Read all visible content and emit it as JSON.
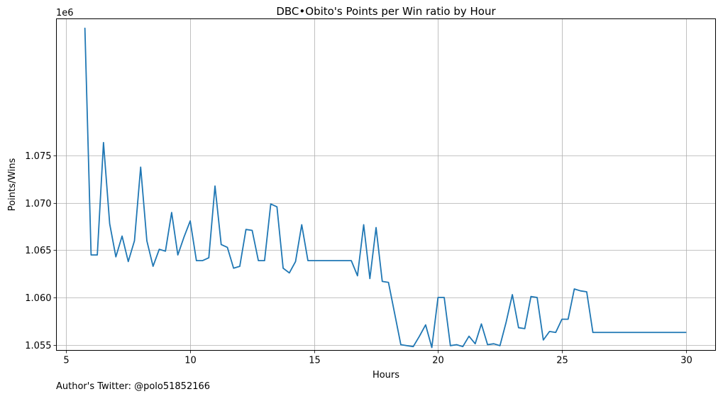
{
  "chart_data": {
    "type": "line",
    "title": "DBC•Obito's Points per Win ratio by Hour",
    "xlabel": "Hours",
    "ylabel": "Points/Wins",
    "y_offset_label": "1e6",
    "xlim": [
      4.6,
      31.2
    ],
    "ylim": [
      1.0544,
      1.0895
    ],
    "x_ticks": [
      5,
      10,
      15,
      20,
      25,
      30
    ],
    "x_tick_labels": [
      "5",
      "10",
      "15",
      "20",
      "25",
      "30"
    ],
    "y_ticks": [
      1.055,
      1.06,
      1.065,
      1.07,
      1.075
    ],
    "y_tick_labels": [
      "1.055",
      "1.060",
      "1.065",
      "1.070",
      "1.075"
    ],
    "grid": true,
    "line_color": "#1f77b4",
    "series": [
      {
        "x": [
          5.75,
          6.0,
          6.25,
          6.5,
          6.75,
          7.0,
          7.25,
          7.5,
          7.75,
          8.0,
          8.25,
          8.5,
          8.75,
          9.0,
          9.25,
          9.5,
          9.75,
          10.0,
          10.25,
          10.5,
          10.75,
          11.0,
          11.25,
          11.5,
          11.75,
          12.0,
          12.25,
          12.5,
          12.75,
          13.0,
          13.25,
          13.5,
          13.75,
          14.0,
          14.25,
          14.5,
          14.75,
          15.0,
          15.25,
          15.5,
          15.75,
          16.0,
          16.25,
          16.5,
          16.75,
          17.0,
          17.25,
          17.5,
          17.75,
          18.0,
          18.25,
          18.5,
          18.75,
          19.0,
          19.25,
          19.5,
          19.75,
          20.0,
          20.25,
          20.5,
          20.75,
          21.0,
          21.25,
          21.5,
          21.75,
          22.0,
          22.25,
          22.5,
          22.75,
          23.0,
          23.25,
          23.5,
          23.75,
          24.0,
          24.25,
          24.5,
          24.75,
          25.0,
          25.25,
          25.5,
          25.75,
          26.0,
          26.25,
          26.5,
          26.75,
          27.0,
          27.25,
          27.5,
          27.75,
          28.0,
          28.25,
          28.5,
          28.75,
          29.0,
          29.25,
          29.5,
          29.75,
          30.0
        ],
        "y": [
          1.0885,
          1.0645,
          1.0645,
          1.0764,
          1.0678,
          1.0643,
          1.0665,
          1.0638,
          1.066,
          1.0738,
          1.066,
          1.0633,
          1.0651,
          1.0649,
          1.069,
          1.0645,
          1.0664,
          1.0681,
          1.0639,
          1.0639,
          1.0642,
          1.0718,
          1.0656,
          1.0653,
          1.0631,
          1.0633,
          1.0672,
          1.0671,
          1.0639,
          1.0639,
          1.0699,
          1.0696,
          1.0631,
          1.0626,
          1.0638,
          1.0677,
          1.0639,
          1.0639,
          1.0639,
          1.0639,
          1.0639,
          1.0639,
          1.0639,
          1.0639,
          1.0623,
          1.0677,
          1.062,
          1.0674,
          1.0617,
          1.0616,
          1.0583,
          1.055,
          1.0549,
          1.0548,
          1.0559,
          1.0571,
          1.0547,
          1.06,
          1.06,
          1.0549,
          1.055,
          1.0548,
          1.0559,
          1.0551,
          1.0572,
          1.055,
          1.0551,
          1.0549,
          1.0574,
          1.0603,
          1.0568,
          1.0567,
          1.0601,
          1.06,
          1.0555,
          1.0564,
          1.0563,
          1.0577,
          1.0577,
          1.0609,
          1.0607,
          1.0606,
          1.0563,
          1.0563,
          1.0563,
          1.0563,
          1.0563,
          1.0563,
          1.0563,
          1.0563,
          1.0563,
          1.0563,
          1.0563,
          1.0563,
          1.0563,
          1.0563,
          1.0563,
          1.0563
        ]
      }
    ]
  },
  "footer": {
    "text": "Author's Twitter: @polo51852166"
  }
}
